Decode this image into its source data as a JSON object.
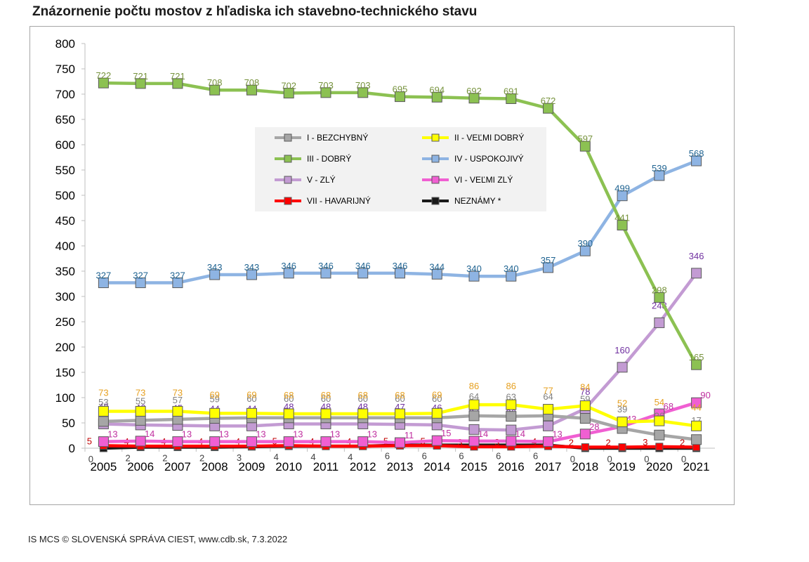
{
  "title": "Znázornenie počtu mostov z hľadiska ich stavebno-technického stavu",
  "footer": "IS MCS © SLOVENSKÁ SPRÁVA CIEST, www.cdb.sk, 7.3.2022",
  "chart_data": {
    "type": "line",
    "x": [
      "2005",
      "2006",
      "2007",
      "2008",
      "2009",
      "2010",
      "2011",
      "2012",
      "2013",
      "2014",
      "2015",
      "2016",
      "2017",
      "2018",
      "2019",
      "2020",
      "2021"
    ],
    "ylim": [
      0,
      800
    ],
    "yticks": [
      0,
      50,
      100,
      150,
      200,
      250,
      300,
      350,
      400,
      450,
      500,
      550,
      600,
      650,
      700,
      750,
      800
    ],
    "grid": false,
    "legend_position": "upper center",
    "series": [
      {
        "name": "I - BEZCHYBNÝ",
        "color": "#a6a6a6",
        "label_color": "#7f7f7f",
        "values": [
          53,
          55,
          57,
          59,
          60,
          60,
          60,
          60,
          60,
          60,
          64,
          63,
          64,
          59,
          39,
          26,
          17
        ]
      },
      {
        "name": "II - VEĽMI DOBRÝ",
        "color": "#ffff00",
        "label_color": "#e6a020",
        "values": [
          73,
          73,
          73,
          69,
          69,
          68,
          68,
          68,
          68,
          69,
          86,
          86,
          77,
          84,
          52,
          54,
          44
        ]
      },
      {
        "name": "III - DOBRÝ",
        "color": "#8cc152",
        "label_color": "#76923c",
        "values": [
          722,
          721,
          721,
          708,
          708,
          702,
          703,
          703,
          695,
          694,
          692,
          691,
          672,
          597,
          441,
          298,
          165
        ]
      },
      {
        "name": "IV - USPOKOJIVÝ",
        "color": "#8eb4e3",
        "label_color": "#1f6391",
        "values": [
          327,
          327,
          327,
          343,
          343,
          346,
          346,
          346,
          346,
          344,
          340,
          340,
          357,
          390,
          499,
          539,
          568
        ]
      },
      {
        "name": "V - ZLÝ",
        "color": "#c39bd3",
        "label_color": "#7030a0",
        "values": [
          48,
          46,
          45,
          44,
          44,
          48,
          48,
          48,
          47,
          46,
          37,
          36,
          44,
          78,
          160,
          248,
          346
        ]
      },
      {
        "name": "VI - VEĽMI ZLÝ",
        "color": "#f05fd2",
        "label_color": "#c030a0",
        "values": [
          13,
          14,
          13,
          13,
          13,
          13,
          13,
          13,
          11,
          15,
          14,
          14,
          13,
          28,
          43,
          68,
          90
        ]
      },
      {
        "name": "VII - HAVARIJNÝ",
        "color": "#ff0000",
        "label_color": "#c00000",
        "values": [
          5,
          4,
          4,
          4,
          4,
          5,
          4,
          4,
          5,
          5,
          3,
          3,
          4,
          2,
          2,
          3,
          2
        ]
      },
      {
        "name": "NEZNÁMY *",
        "color": "#1a1a1a",
        "label_color": "#404040",
        "values": [
          0,
          2,
          2,
          2,
          3,
          4,
          4,
          4,
          6,
          6,
          6,
          6,
          6,
          0,
          0,
          0,
          0
        ]
      }
    ]
  }
}
